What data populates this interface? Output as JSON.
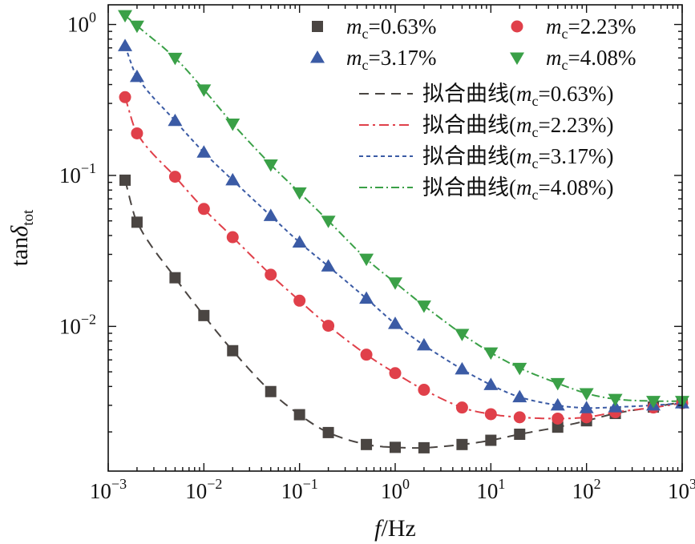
{
  "chart_data": {
    "type": "scatter",
    "title": "",
    "xlabel": "f/Hz",
    "xlabel_parts": {
      "var": "f",
      "unit": "/Hz"
    },
    "ylabel": "tanδtot",
    "ylabel_parts": {
      "base": "tan",
      "delta": "δ",
      "sub": "tot"
    },
    "xscale": "log",
    "yscale": "log",
    "xlim": [
      0.001,
      1000
    ],
    "ylim": [
      0.0011,
      1.35
    ],
    "x_ticks": [
      {
        "value": 0.001,
        "base": "10",
        "exp": "−3"
      },
      {
        "value": 0.01,
        "base": "10",
        "exp": "−2"
      },
      {
        "value": 0.1,
        "base": "10",
        "exp": "−1"
      },
      {
        "value": 1,
        "base": "10",
        "exp": "0"
      },
      {
        "value": 10,
        "base": "10",
        "exp": "1"
      },
      {
        "value": 100,
        "base": "10",
        "exp": "2"
      },
      {
        "value": 1000,
        "base": "10",
        "exp": "3"
      }
    ],
    "y_ticks": [
      {
        "value": 0.01,
        "base": "10",
        "exp": "−2"
      },
      {
        "value": 0.1,
        "base": "10",
        "exp": "−1"
      },
      {
        "value": 1,
        "base": "10",
        "exp": "0"
      }
    ],
    "legend_placement": "top-right",
    "series": [
      {
        "name": "mc=0.63%",
        "var": "m",
        "sub": "c",
        "val": "=0.63%",
        "marker": "square",
        "color": "#4a4542",
        "x": [
          0.0015,
          0.002,
          0.005,
          0.01,
          0.02,
          0.05,
          0.1,
          0.2,
          0.5,
          1,
          2,
          5,
          10,
          20,
          50,
          100,
          200,
          500,
          1000
        ],
        "y": [
          0.093,
          0.049,
          0.021,
          0.0118,
          0.0069,
          0.0037,
          0.0026,
          0.00198,
          0.00165,
          0.00158,
          0.00157,
          0.00165,
          0.00176,
          0.00193,
          0.00215,
          0.00237,
          0.00265,
          0.00292,
          0.00315
        ]
      },
      {
        "name": "mc=2.23%",
        "var": "m",
        "sub": "c",
        "val": "=2.23%",
        "marker": "circle",
        "color": "#e0404a",
        "x": [
          0.0015,
          0.002,
          0.005,
          0.01,
          0.02,
          0.05,
          0.1,
          0.2,
          0.5,
          1,
          2,
          5,
          10,
          20,
          50,
          100,
          200,
          500,
          1000
        ],
        "y": [
          0.33,
          0.19,
          0.098,
          0.06,
          0.039,
          0.022,
          0.0148,
          0.0101,
          0.0065,
          0.0049,
          0.0038,
          0.0029,
          0.00262,
          0.0025,
          0.00245,
          0.0025,
          0.0027,
          0.0029,
          0.0031
        ]
      },
      {
        "name": "mc=3.17%",
        "var": "m",
        "sub": "c",
        "val": "=3.17%",
        "marker": "triangle-up",
        "color": "#3b5ba5",
        "x": [
          0.0015,
          0.002,
          0.005,
          0.01,
          0.02,
          0.05,
          0.1,
          0.2,
          0.5,
          1,
          2,
          5,
          10,
          20,
          50,
          100,
          200,
          500,
          1000
        ],
        "y": [
          0.72,
          0.45,
          0.23,
          0.142,
          0.093,
          0.054,
          0.036,
          0.025,
          0.0153,
          0.0104,
          0.0075,
          0.0052,
          0.0041,
          0.0034,
          0.003,
          0.00288,
          0.00292,
          0.003,
          0.0031
        ]
      },
      {
        "name": "mc=4.08%",
        "var": "m",
        "sub": "c",
        "val": "=4.08%",
        "marker": "triangle-down",
        "color": "#3aa047",
        "x": [
          0.0015,
          0.002,
          0.005,
          0.01,
          0.02,
          0.05,
          0.1,
          0.2,
          0.5,
          1,
          2,
          5,
          10,
          20,
          50,
          100,
          200,
          500,
          1000
        ],
        "y": [
          1.15,
          0.98,
          0.6,
          0.37,
          0.22,
          0.118,
          0.077,
          0.05,
          0.028,
          0.0195,
          0.0137,
          0.0089,
          0.0067,
          0.0053,
          0.0042,
          0.0036,
          0.0033,
          0.0032,
          0.0032
        ]
      }
    ],
    "fit_curves": [
      {
        "name": "拟合曲线(mc=0.63%)",
        "prefix": "拟合曲线(",
        "var": "m",
        "sub": "c",
        "val": "=0.63%)",
        "color": "#4a4542",
        "dash": "12,8"
      },
      {
        "name": "拟合曲线(mc=2.23%)",
        "prefix": "拟合曲线(",
        "var": "m",
        "sub": "c",
        "val": "=2.23%)",
        "color": "#e0404a",
        "dash": "12,5,3,5"
      },
      {
        "name": "拟合曲线(mc=3.17%)",
        "prefix": "拟合曲线(",
        "var": "m",
        "sub": "c",
        "val": "=3.17%)",
        "color": "#3b5ba5",
        "dash": "5,4"
      },
      {
        "name": "拟合曲线(mc=4.08%)",
        "prefix": "拟合曲线(",
        "var": "m",
        "sub": "c",
        "val": "=4.08%)",
        "color": "#3aa047",
        "dash": "10,4,2,4"
      }
    ]
  }
}
